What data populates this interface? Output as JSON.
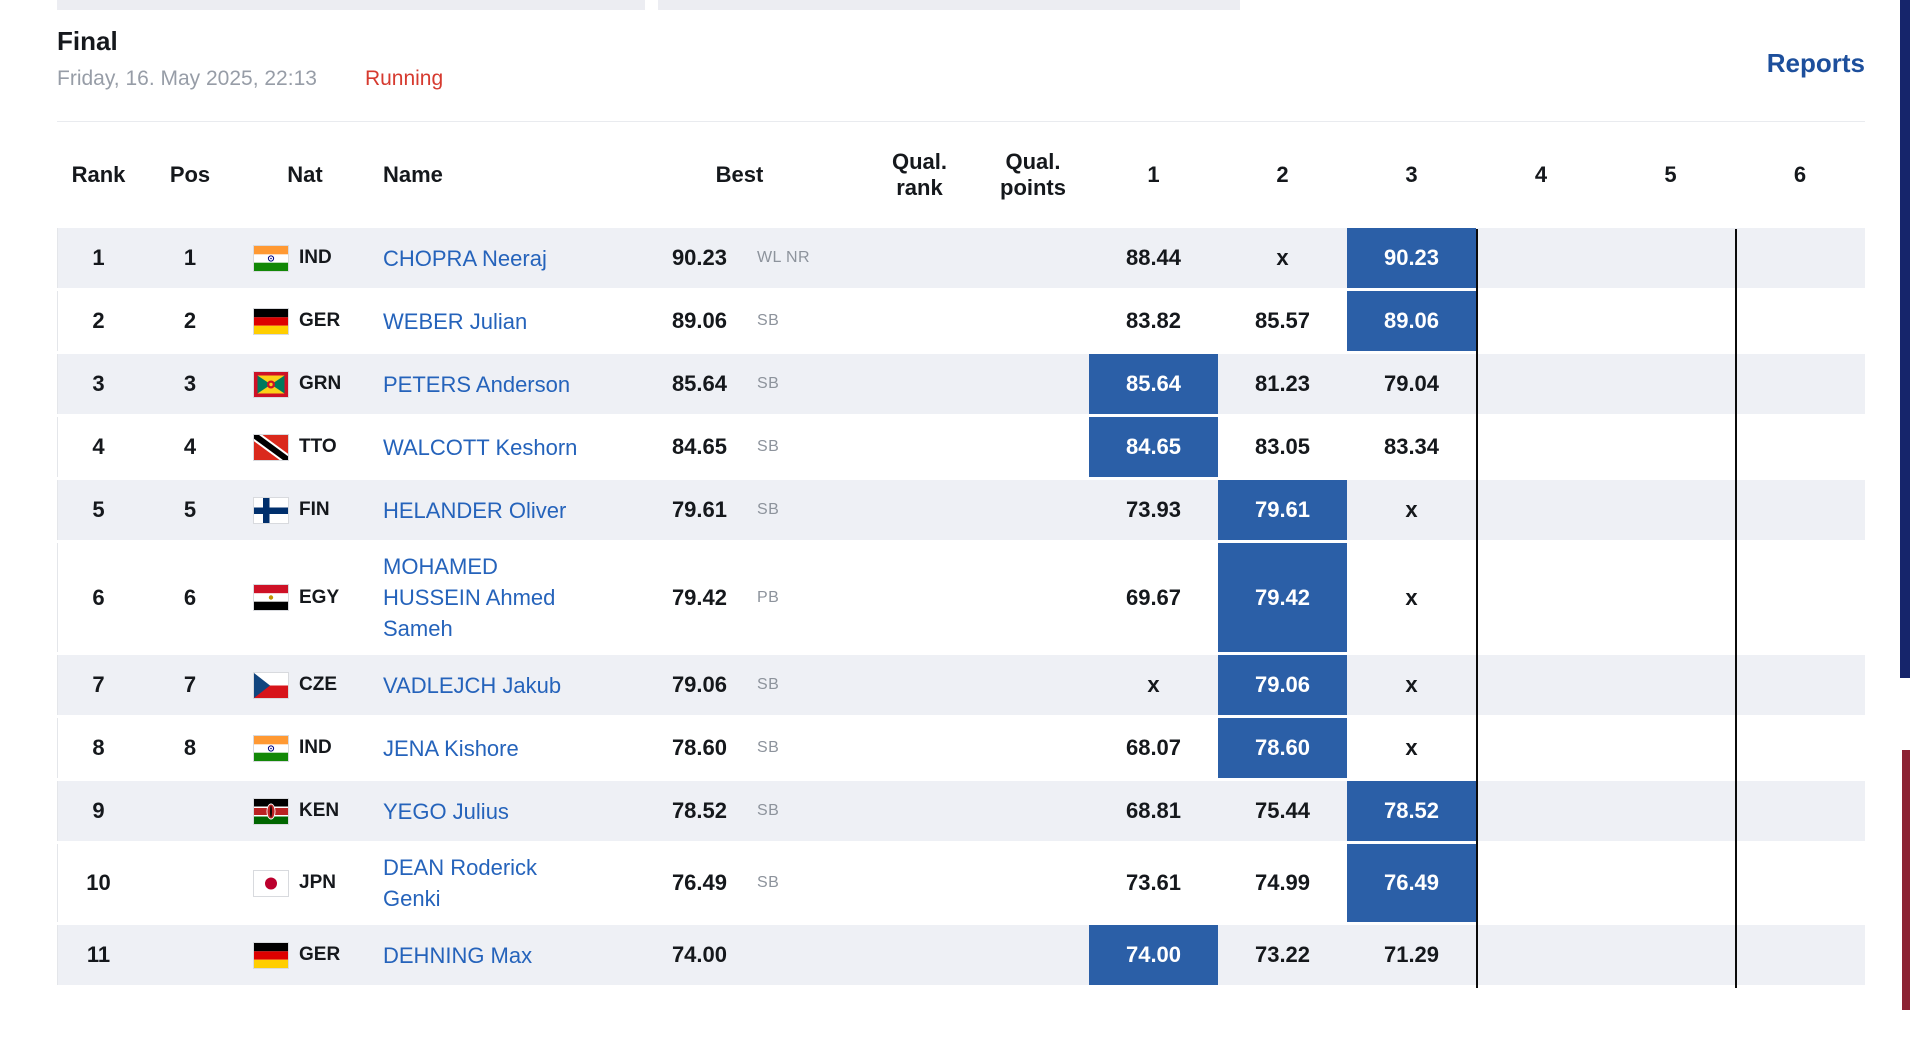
{
  "colors": {
    "highlight_blue": "#2b5fa7",
    "link_blue": "#2563bb",
    "reports_blue": "#1d4f9c",
    "running_red": "#d63a2f",
    "row_alt_bg": "#eef0f5",
    "tab_gray": "#ecedf2",
    "scrollbar_navy": "#16256b",
    "scrollbar_maroon": "#8c2333"
  },
  "header": {
    "title": "Final",
    "datetime": "Friday, 16. May 2025, 22:13",
    "status": "Running",
    "reports_label": "Reports"
  },
  "table": {
    "headers": {
      "rank": "Rank",
      "pos": "Pos",
      "nat": "Nat",
      "name": "Name",
      "best": "Best",
      "qual_rank": "Qual.\nrank",
      "qual_points": "Qual.\npoints",
      "attempts": [
        "1",
        "2",
        "3",
        "4",
        "5",
        "6"
      ]
    },
    "rows": [
      {
        "rank": "1",
        "pos": "1",
        "nat": "IND",
        "name": "CHOPRA Neeraj",
        "best": "90.23",
        "note": "WL NR",
        "qual_rank": "",
        "qual_points": "",
        "attempts": [
          "88.44",
          "x",
          "90.23",
          "",
          "",
          ""
        ],
        "highlight": 2
      },
      {
        "rank": "2",
        "pos": "2",
        "nat": "GER",
        "name": "WEBER Julian",
        "best": "89.06",
        "note": "SB",
        "qual_rank": "",
        "qual_points": "",
        "attempts": [
          "83.82",
          "85.57",
          "89.06",
          "",
          "",
          ""
        ],
        "highlight": 2
      },
      {
        "rank": "3",
        "pos": "3",
        "nat": "GRN",
        "name": "PETERS Anderson",
        "best": "85.64",
        "note": "SB",
        "qual_rank": "",
        "qual_points": "",
        "attempts": [
          "85.64",
          "81.23",
          "79.04",
          "",
          "",
          ""
        ],
        "highlight": 0
      },
      {
        "rank": "4",
        "pos": "4",
        "nat": "TTO",
        "name": "WALCOTT Keshorn",
        "best": "84.65",
        "note": "SB",
        "qual_rank": "",
        "qual_points": "",
        "attempts": [
          "84.65",
          "83.05",
          "83.34",
          "",
          "",
          ""
        ],
        "highlight": 0
      },
      {
        "rank": "5",
        "pos": "5",
        "nat": "FIN",
        "name": "HELANDER Oliver",
        "best": "79.61",
        "note": "SB",
        "qual_rank": "",
        "qual_points": "",
        "attempts": [
          "73.93",
          "79.61",
          "x",
          "",
          "",
          ""
        ],
        "highlight": 1
      },
      {
        "rank": "6",
        "pos": "6",
        "nat": "EGY",
        "name": "MOHAMED\nHUSSEIN Ahmed\nSameh",
        "best": "79.42",
        "note": "PB",
        "qual_rank": "",
        "qual_points": "",
        "attempts": [
          "69.67",
          "79.42",
          "x",
          "",
          "",
          ""
        ],
        "highlight": 1
      },
      {
        "rank": "7",
        "pos": "7",
        "nat": "CZE",
        "name": "VADLEJCH Jakub",
        "best": "79.06",
        "note": "SB",
        "qual_rank": "",
        "qual_points": "",
        "attempts": [
          "x",
          "79.06",
          "x",
          "",
          "",
          ""
        ],
        "highlight": 1
      },
      {
        "rank": "8",
        "pos": "8",
        "nat": "IND",
        "name": "JENA Kishore",
        "best": "78.60",
        "note": "SB",
        "qual_rank": "",
        "qual_points": "",
        "attempts": [
          "68.07",
          "78.60",
          "x",
          "",
          "",
          ""
        ],
        "highlight": 1
      },
      {
        "rank": "9",
        "pos": "",
        "nat": "KEN",
        "name": "YEGO Julius",
        "best": "78.52",
        "note": "SB",
        "qual_rank": "",
        "qual_points": "",
        "attempts": [
          "68.81",
          "75.44",
          "78.52",
          "",
          "",
          ""
        ],
        "highlight": 2
      },
      {
        "rank": "10",
        "pos": "",
        "nat": "JPN",
        "name": "DEAN Roderick\nGenki",
        "best": "76.49",
        "note": "SB",
        "qual_rank": "",
        "qual_points": "",
        "attempts": [
          "73.61",
          "74.99",
          "76.49",
          "",
          "",
          ""
        ],
        "highlight": 2
      },
      {
        "rank": "11",
        "pos": "",
        "nat": "GER",
        "name": "DEHNING Max",
        "best": "74.00",
        "note": "",
        "qual_rank": "",
        "qual_points": "",
        "attempts": [
          "74.00",
          "73.22",
          "71.29",
          "",
          "",
          ""
        ],
        "highlight": 0
      }
    ]
  }
}
